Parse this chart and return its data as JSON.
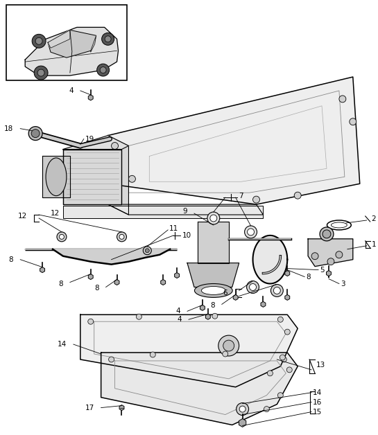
{
  "background_color": "#ffffff",
  "fig_width": 5.45,
  "fig_height": 6.28,
  "line_color": "#000000",
  "gray_fill": "#e8e8e8",
  "mid_gray": "#cccccc",
  "dark_gray": "#888888"
}
